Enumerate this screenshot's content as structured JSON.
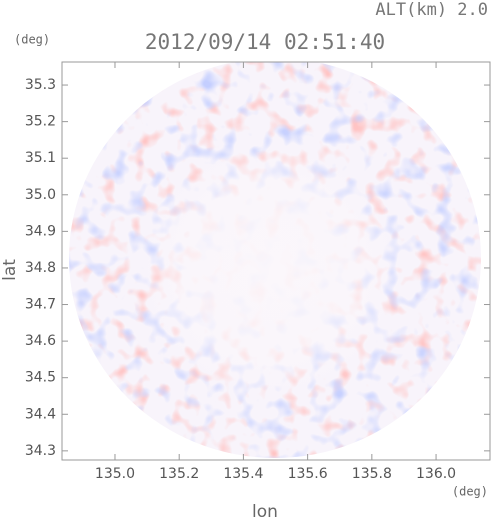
{
  "chart_data": {
    "type": "radar-ppi",
    "title": "2012/09/14 02:51:40",
    "annotation": "ALT(km) 2.0",
    "x_label": "lon",
    "x_unit": "(deg)",
    "y_label": "lat",
    "y_unit": "(deg)",
    "xlim": [
      134.835,
      136.168
    ],
    "xticks": [
      {
        "value": 135.0,
        "label": "135.0"
      },
      135.2,
      135.4,
      135.6,
      135.8,
      {
        "value": 136.0,
        "label": "136.0"
      }
    ],
    "ylim": [
      34.275,
      35.363
    ],
    "yticks": [
      34.3,
      34.4,
      34.5,
      34.6,
      34.7,
      34.8,
      34.9,
      {
        "value": 35.0,
        "label": "35.0"
      },
      35.1,
      35.2,
      35.3
    ]
  }
}
